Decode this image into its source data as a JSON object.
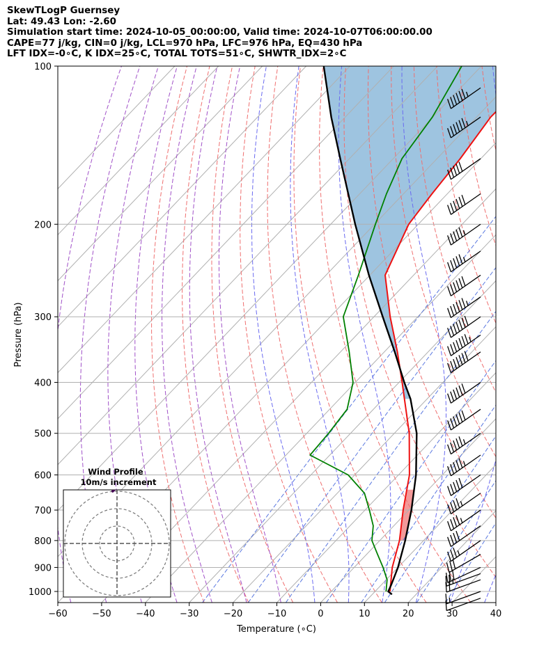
{
  "chart_data": {
    "type": "line",
    "title_lines": [
      "SkewTLogP Guernsey",
      "Lat: 49.43   Lon: -2.60",
      "Simulation start time: 2024-10-05_00:00:00, Valid time: 2024-10-07T06:00:00.00",
      "CAPE=77 j/kg, CIN=0 j/kg, LCL=970 hPa, LFC=976 hPa, EQ=430 hPa",
      "LFT IDX=-0∘C, K IDX=25∘C, TOTAL TOTS=51∘C, SHWTR_IDX=2∘C"
    ],
    "xlabel": "Temperature (∘C)",
    "ylabel": "Pressure (hPa)",
    "xlim": [
      -60,
      40
    ],
    "ylim": [
      1050,
      100
    ],
    "x_ticks": [
      -60,
      -50,
      -40,
      -30,
      -20,
      -10,
      0,
      10,
      20,
      30,
      40
    ],
    "x_tick_labels": [
      "−60",
      "−50",
      "−40",
      "−30",
      "−20",
      "−10",
      "0",
      "10",
      "20",
      "30",
      "40"
    ],
    "y_ticks": [
      1000,
      900,
      800,
      700,
      600,
      500,
      400,
      300,
      200,
      100
    ],
    "y_tick_labels": [
      "1000",
      "900",
      "800",
      "700",
      "600",
      "500",
      "400",
      "300",
      "200",
      "100"
    ],
    "series": [
      {
        "name": "Temperature",
        "color": "#ee1111",
        "points": [
          [
            1000,
            13.4
          ],
          [
            900,
            8.7
          ],
          [
            800,
            4.5
          ],
          [
            700,
            -1.3
          ],
          [
            600,
            -7.5
          ],
          [
            500,
            -16.6
          ],
          [
            400,
            -29.3
          ],
          [
            350,
            -37.0
          ],
          [
            300,
            -46.3
          ],
          [
            250,
            -56.5
          ],
          [
            200,
            -62.2
          ],
          [
            175,
            -63.5
          ],
          [
            150,
            -64.7
          ],
          [
            125,
            -66.8
          ],
          [
            110,
            -66.6
          ],
          [
            100,
            -66.2
          ]
        ]
      },
      {
        "name": "Dewpoint",
        "color": "#008000",
        "points": [
          [
            1000,
            12.5
          ],
          [
            950,
            10.2
          ],
          [
            900,
            6.6
          ],
          [
            850,
            2.5
          ],
          [
            800,
            -1.8
          ],
          [
            750,
            -4.7
          ],
          [
            700,
            -9.0
          ],
          [
            650,
            -13.8
          ],
          [
            600,
            -21.5
          ],
          [
            550,
            -34.5
          ],
          [
            500,
            -35.0
          ],
          [
            450,
            -36.0
          ],
          [
            400,
            -40.5
          ],
          [
            350,
            -48.0
          ],
          [
            300,
            -57.0
          ],
          [
            250,
            -62.6
          ],
          [
            200,
            -69.8
          ],
          [
            175,
            -73.9
          ],
          [
            150,
            -78.0
          ],
          [
            125,
            -80.1
          ],
          [
            100,
            -84.5
          ]
        ]
      },
      {
        "name": "Parcel profile",
        "color": "#000000",
        "points": [
          [
            1013,
            14.5
          ],
          [
            1000,
            13.0
          ],
          [
            970,
            12.2
          ],
          [
            900,
            10.0
          ],
          [
            800,
            5.8
          ],
          [
            700,
            0.6
          ],
          [
            600,
            -6.0
          ],
          [
            500,
            -14.9
          ],
          [
            430,
            -23.8
          ],
          [
            400,
            -28.8
          ],
          [
            350,
            -37.6
          ],
          [
            300,
            -48.0
          ],
          [
            250,
            -60.2
          ],
          [
            200,
            -74.4
          ],
          [
            150,
            -92.1
          ],
          [
            125,
            -103.2
          ],
          [
            100,
            -116.0
          ]
        ]
      }
    ],
    "shading": {
      "cape_color": "#9ec4e0",
      "cin_color": "#f08080"
    },
    "wind_barbs": {
      "levels": [
        1030,
        1000,
        950,
        925,
        900,
        850,
        800,
        750,
        700,
        650,
        600,
        550,
        500,
        450,
        400,
        350,
        325,
        300,
        275,
        250,
        225,
        200,
        175,
        150,
        125,
        110
      ],
      "speed_kt": [
        10,
        15,
        20,
        25,
        30,
        30,
        35,
        40,
        45,
        45,
        50,
        55,
        55,
        60,
        60,
        70,
        75,
        70,
        65,
        60,
        55,
        55,
        60,
        50,
        65,
        65
      ],
      "direction_deg": [
        250,
        250,
        250,
        250,
        245,
        240,
        235,
        235,
        235,
        235,
        235,
        235,
        235,
        235,
        235,
        235,
        235,
        235,
        235,
        235,
        235,
        235,
        235,
        235,
        235,
        235
      ]
    },
    "hodograph": {
      "title": "Wind Profile",
      "subtitle": "10m/s increment",
      "rings_ms": [
        10,
        20,
        30
      ],
      "points_uv": [
        [
          -2.5,
          10
        ],
        [
          -1,
          10.5
        ],
        [
          1,
          10.8
        ],
        [
          2.5,
          10.5
        ],
        [
          3.5,
          11.2
        ],
        [
          4,
          11.8
        ],
        [
          5,
          12.5
        ],
        [
          6,
          12
        ],
        [
          8,
          12.2
        ],
        [
          10,
          12.6
        ],
        [
          12,
          12.9
        ],
        [
          14,
          13.6
        ],
        [
          16,
          14.5
        ],
        [
          18,
          15.5
        ],
        [
          20,
          16.6
        ],
        [
          23,
          17.5
        ],
        [
          26,
          18.5
        ],
        [
          29,
          20
        ],
        [
          31,
          21.5
        ],
        [
          33,
          23
        ],
        [
          35,
          24.5
        ],
        [
          37,
          25.8
        ]
      ]
    }
  }
}
